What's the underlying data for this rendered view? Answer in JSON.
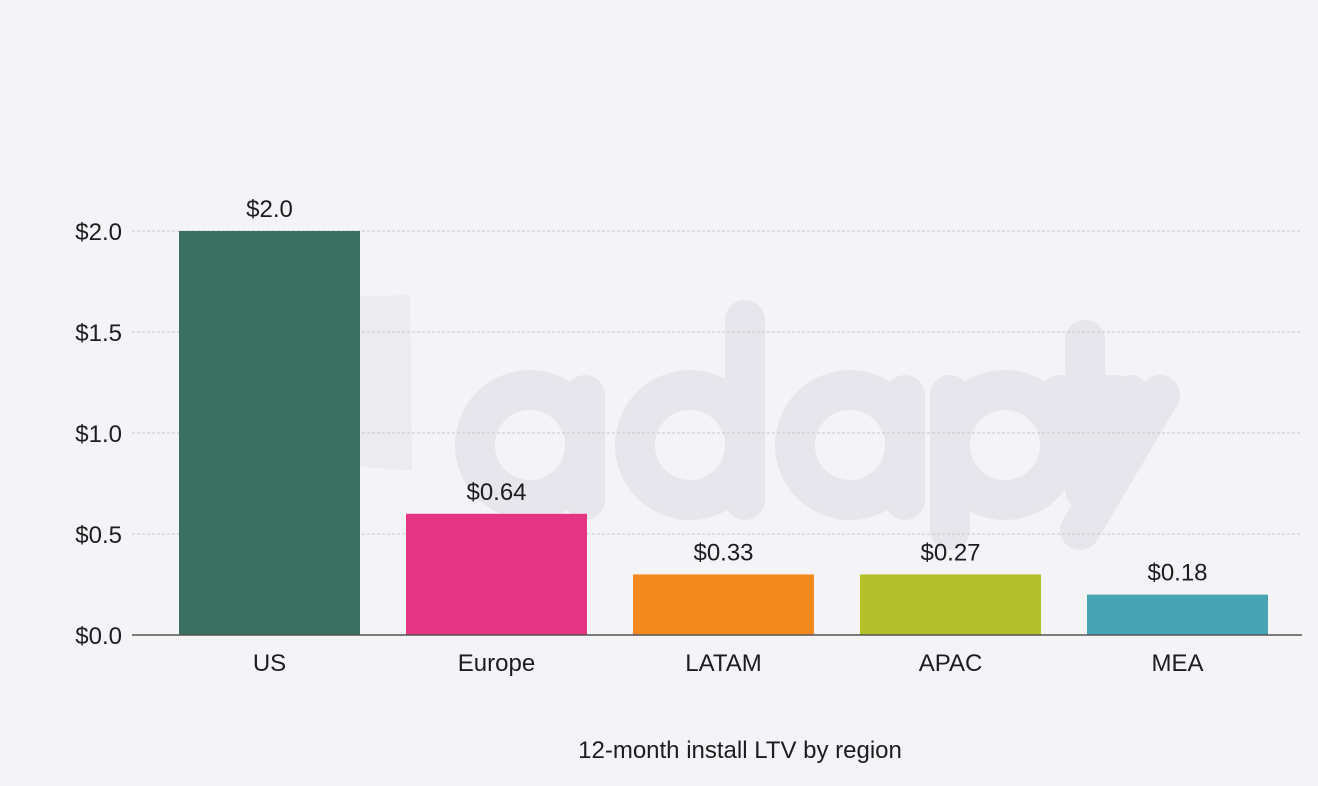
{
  "watermark": "adapty",
  "chart_data": {
    "type": "bar",
    "categories": [
      "US",
      "Europe",
      "LATAM",
      "APAC",
      "MEA"
    ],
    "values": [
      2.0,
      0.6,
      0.3,
      0.3,
      0.2
    ],
    "data_labels": [
      "$2.0",
      "$0.64",
      "$0.33",
      "$0.27",
      "$0.18"
    ],
    "colors": [
      "#3b6f5f",
      "#e43482",
      "#f48a1f",
      "#b4c12d",
      "#47a4b2"
    ],
    "xlabel": "12-month install LTV by region",
    "ylabel": "",
    "ylim": [
      0,
      2.0
    ],
    "yticks": [
      0,
      0.5,
      1.0,
      1.5,
      2.0
    ],
    "ytick_labels": [
      "$0.0",
      "$0.5",
      "$1.0",
      "$1.5",
      "$2.0"
    ],
    "grid": "horizontal dashed",
    "legend": "none"
  }
}
